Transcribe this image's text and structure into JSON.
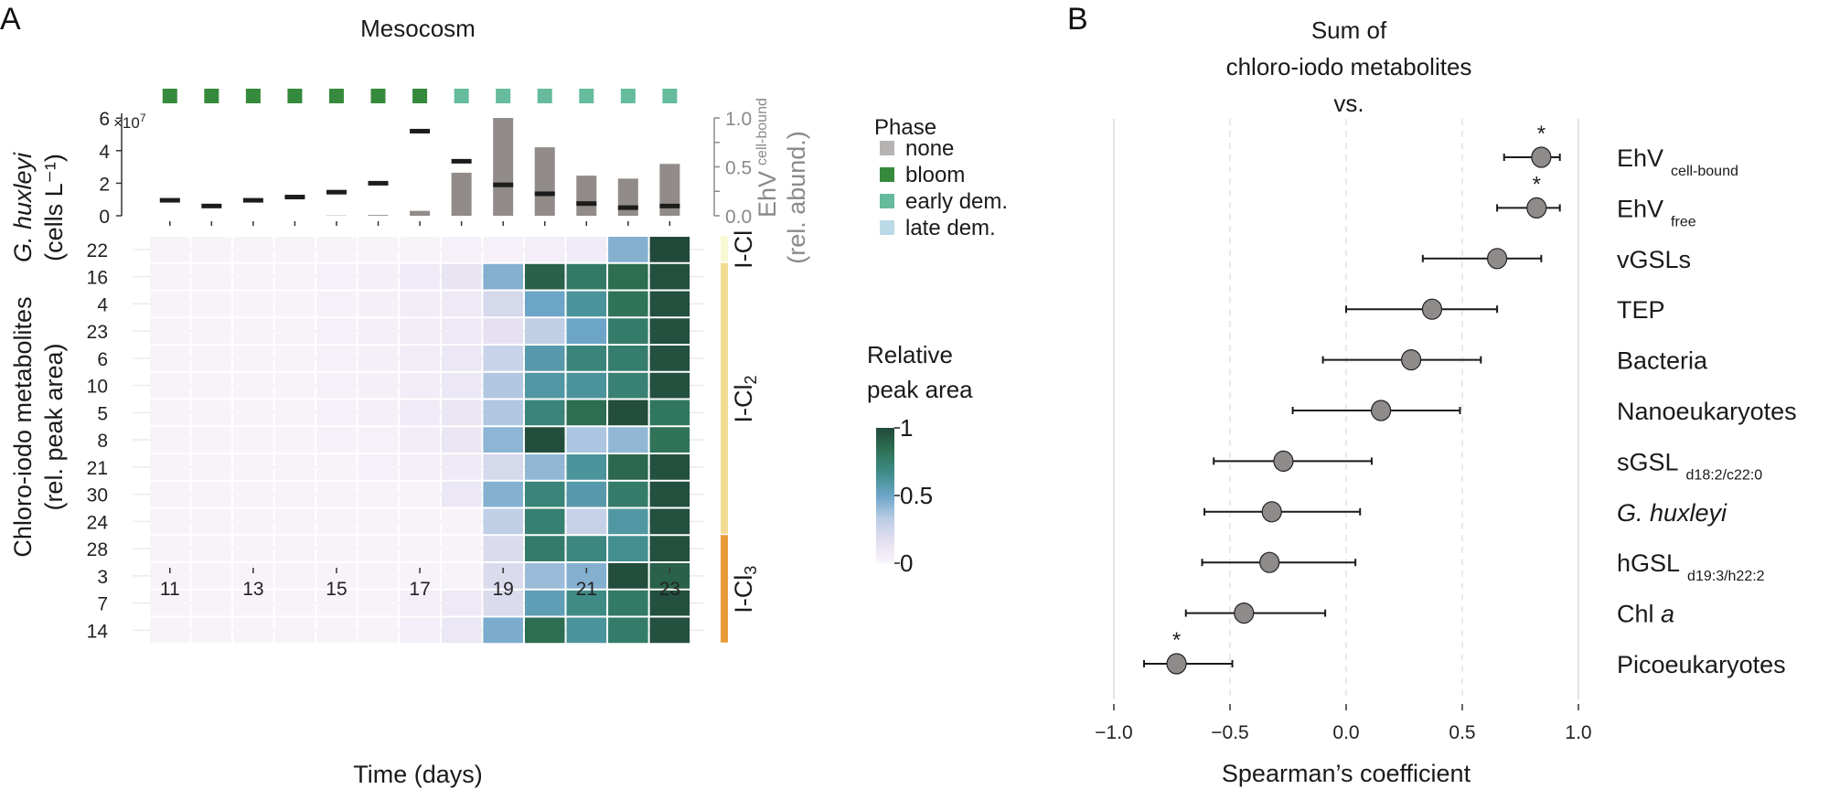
{
  "panel_a": {
    "letter": "A",
    "title": "Mesocosm",
    "phase_legend": {
      "title": "Phase",
      "items": [
        {
          "label": "none",
          "color": "#b7b3b3"
        },
        {
          "label": "bloom",
          "color": "#368a3c"
        },
        {
          "label": "early dem.",
          "color": "#66bb9c"
        },
        {
          "label": "late dem.",
          "color": "#bcd9e8"
        }
      ]
    },
    "heat_legend": {
      "title_line1": "Relative",
      "title_line2": "peak area",
      "ticks": [
        "1",
        "0.5",
        "0"
      ],
      "colors": [
        "#f9f4fa",
        "#e4dff0",
        "#b8cbe4",
        "#6da5c8",
        "#3f8d8a",
        "#2e7155",
        "#21493a"
      ]
    },
    "groups": [
      {
        "label": "I-Cl",
        "sub": "",
        "color": "#f7f9d4",
        "rows": 1
      },
      {
        "label": "I-Cl",
        "sub": "2",
        "color": "#f2dc94",
        "rows": 10
      },
      {
        "label": "I-Cl",
        "sub": "3",
        "color": "#e99b3a",
        "rows": 4
      }
    ]
  },
  "chart_data": [
    {
      "type": "bar",
      "title": "Mesocosm",
      "xlabel": "Time (days)",
      "ylabel_line1": "G. huxleyi",
      "ylabel_line2": "(cells L⁻¹)",
      "y_multiplier": "×10",
      "y_multiplier_exp": "7",
      "ylim": [
        0,
        6.5
      ],
      "yticks": [
        "0",
        "2",
        "4",
        "6"
      ],
      "y2label_main": "EhV",
      "y2label_sub": "cell-bound",
      "y2label_line2": "(rel. abund.)",
      "y2lim": [
        0,
        1.0
      ],
      "y2ticks": [
        "0.0",
        "0.5",
        "1.0"
      ],
      "days": [
        11,
        12,
        13,
        14,
        15,
        16,
        17,
        18,
        19,
        20,
        21,
        22,
        23
      ],
      "phase": [
        "bloom",
        "bloom",
        "bloom",
        "bloom",
        "bloom",
        "bloom",
        "bloom",
        "early dem.",
        "early dem.",
        "early dem.",
        "early dem.",
        "early dem.",
        "early dem."
      ],
      "series": [
        {
          "name": "EhV cell-bound (rel. abund.)",
          "kind": "bar",
          "color": "#918c89",
          "values": [
            0.0,
            0.0,
            0.0,
            0.0,
            0.003,
            0.008,
            0.05,
            0.44,
            1.0,
            0.7,
            0.41,
            0.38,
            0.53
          ]
        },
        {
          "name": "G. huxleyi (×10^7 cells L-1)",
          "kind": "marker",
          "color": "#1c1c1c",
          "values": [
            0.95,
            0.6,
            0.95,
            1.15,
            1.45,
            2.0,
            5.2,
            3.35,
            1.9,
            1.35,
            0.75,
            0.5,
            0.6
          ]
        }
      ]
    },
    {
      "type": "heatmap",
      "ylabel_line1": "Chloro-iodo metabolites",
      "ylabel_line2": "(rel. peak area)",
      "xlabel": "Time (days)",
      "x": [
        11,
        12,
        13,
        14,
        15,
        16,
        17,
        18,
        19,
        20,
        21,
        22,
        23
      ],
      "xticks": [
        "11",
        "13",
        "15",
        "17",
        "19",
        "21",
        "23"
      ],
      "rows": [
        "22",
        "16",
        "4",
        "23",
        "6",
        "10",
        "5",
        "8",
        "21",
        "30",
        "24",
        "28",
        "3",
        "7",
        "14"
      ],
      "values": [
        [
          0.01,
          0.01,
          0.01,
          0.01,
          0.01,
          0.01,
          0.01,
          0.02,
          0.02,
          0.05,
          0.07,
          0.45,
          1.0
        ],
        [
          0.01,
          0.01,
          0.01,
          0.01,
          0.02,
          0.03,
          0.07,
          0.13,
          0.45,
          0.9,
          0.78,
          0.85,
          0.97
        ],
        [
          0.01,
          0.01,
          0.01,
          0.01,
          0.02,
          0.03,
          0.06,
          0.09,
          0.22,
          0.5,
          0.62,
          0.82,
          0.97
        ],
        [
          0.01,
          0.01,
          0.01,
          0.01,
          0.02,
          0.03,
          0.06,
          0.09,
          0.15,
          0.3,
          0.5,
          0.77,
          0.97
        ],
        [
          0.01,
          0.01,
          0.01,
          0.01,
          0.02,
          0.03,
          0.06,
          0.1,
          0.27,
          0.58,
          0.72,
          0.76,
          0.97
        ],
        [
          0.01,
          0.01,
          0.01,
          0.01,
          0.02,
          0.03,
          0.06,
          0.1,
          0.35,
          0.6,
          0.62,
          0.74,
          0.97
        ],
        [
          0.01,
          0.01,
          0.01,
          0.01,
          0.02,
          0.03,
          0.07,
          0.11,
          0.35,
          0.72,
          0.85,
          0.98,
          0.8
        ],
        [
          0.01,
          0.01,
          0.01,
          0.01,
          0.02,
          0.02,
          0.06,
          0.11,
          0.43,
          0.98,
          0.36,
          0.42,
          0.82
        ],
        [
          0.01,
          0.01,
          0.01,
          0.01,
          0.01,
          0.02,
          0.05,
          0.08,
          0.22,
          0.42,
          0.62,
          0.87,
          0.97
        ],
        [
          0.01,
          0.01,
          0.01,
          0.01,
          0.01,
          0.01,
          0.01,
          0.1,
          0.45,
          0.72,
          0.58,
          0.77,
          0.97
        ],
        [
          0.01,
          0.01,
          0.01,
          0.01,
          0.01,
          0.01,
          0.01,
          0.01,
          0.3,
          0.75,
          0.28,
          0.6,
          0.97
        ],
        [
          0.01,
          0.01,
          0.01,
          0.01,
          0.01,
          0.01,
          0.01,
          0.01,
          0.2,
          0.77,
          0.7,
          0.65,
          0.97
        ],
        [
          0.01,
          0.01,
          0.01,
          0.01,
          0.01,
          0.01,
          0.01,
          0.01,
          0.2,
          0.4,
          0.45,
          0.98,
          0.9
        ],
        [
          0.01,
          0.01,
          0.01,
          0.01,
          0.01,
          0.01,
          0.05,
          0.09,
          0.2,
          0.55,
          0.68,
          0.78,
          0.97
        ],
        [
          0.01,
          0.01,
          0.01,
          0.01,
          0.01,
          0.01,
          0.05,
          0.1,
          0.47,
          0.85,
          0.62,
          0.77,
          0.97
        ]
      ],
      "vlim": [
        0,
        1
      ]
    },
    {
      "type": "scatter",
      "subtype": "forest",
      "title_lines": [
        "Sum of",
        "chloro-iodo metabolites",
        "vs."
      ],
      "xlabel": "Spearman’s coefficient",
      "xlim": [
        -1.0,
        1.0
      ],
      "xticks": [
        "−1.0",
        "−0.5",
        "0.0",
        "0.5",
        "1.0"
      ],
      "xtick_values": [
        -1.0,
        -0.5,
        0.0,
        0.5,
        1.0
      ],
      "grid": "vertical dashed at ±0.5 and 0",
      "points": [
        {
          "label": "EhV",
          "sub": "cell-bound",
          "italic": false,
          "value": 0.84,
          "ci": [
            0.68,
            0.92
          ],
          "significant": true
        },
        {
          "label": "EhV",
          "sub": "free",
          "italic": false,
          "value": 0.82,
          "ci": [
            0.65,
            0.92
          ],
          "significant": true
        },
        {
          "label": "vGSLs",
          "sub": "",
          "italic": false,
          "value": 0.65,
          "ci": [
            0.33,
            0.84
          ],
          "significant": false
        },
        {
          "label": "TEP",
          "sub": "",
          "italic": false,
          "value": 0.37,
          "ci": [
            0.0,
            0.65
          ],
          "significant": false
        },
        {
          "label": "Bacteria",
          "sub": "",
          "italic": false,
          "value": 0.28,
          "ci": [
            -0.1,
            0.58
          ],
          "significant": false
        },
        {
          "label": "Nanoeukaryotes",
          "sub": "",
          "italic": false,
          "value": 0.15,
          "ci": [
            -0.23,
            0.49
          ],
          "significant": false
        },
        {
          "label": "sGSL",
          "sub": "d18:2/c22:0",
          "italic": false,
          "value": -0.27,
          "ci": [
            -0.57,
            0.11
          ],
          "significant": false
        },
        {
          "label": "G. huxleyi",
          "sub": "",
          "italic": true,
          "value": -0.32,
          "ci": [
            -0.61,
            0.06
          ],
          "significant": false
        },
        {
          "label": "hGSL",
          "sub": "d19:3/h22:2",
          "italic": false,
          "value": -0.33,
          "ci": [
            -0.62,
            0.04
          ],
          "significant": false
        },
        {
          "label": "Chl",
          "sub": "",
          "italic_suffix": "a",
          "italic": false,
          "value": -0.44,
          "ci": [
            -0.69,
            -0.09
          ],
          "significant": false
        },
        {
          "label": "Picoeukaryotes",
          "sub": "",
          "italic": false,
          "value": -0.73,
          "ci": [
            -0.87,
            -0.49
          ],
          "significant": true
        }
      ],
      "significance_marker": "*"
    }
  ],
  "panel_b": {
    "letter": "B"
  }
}
